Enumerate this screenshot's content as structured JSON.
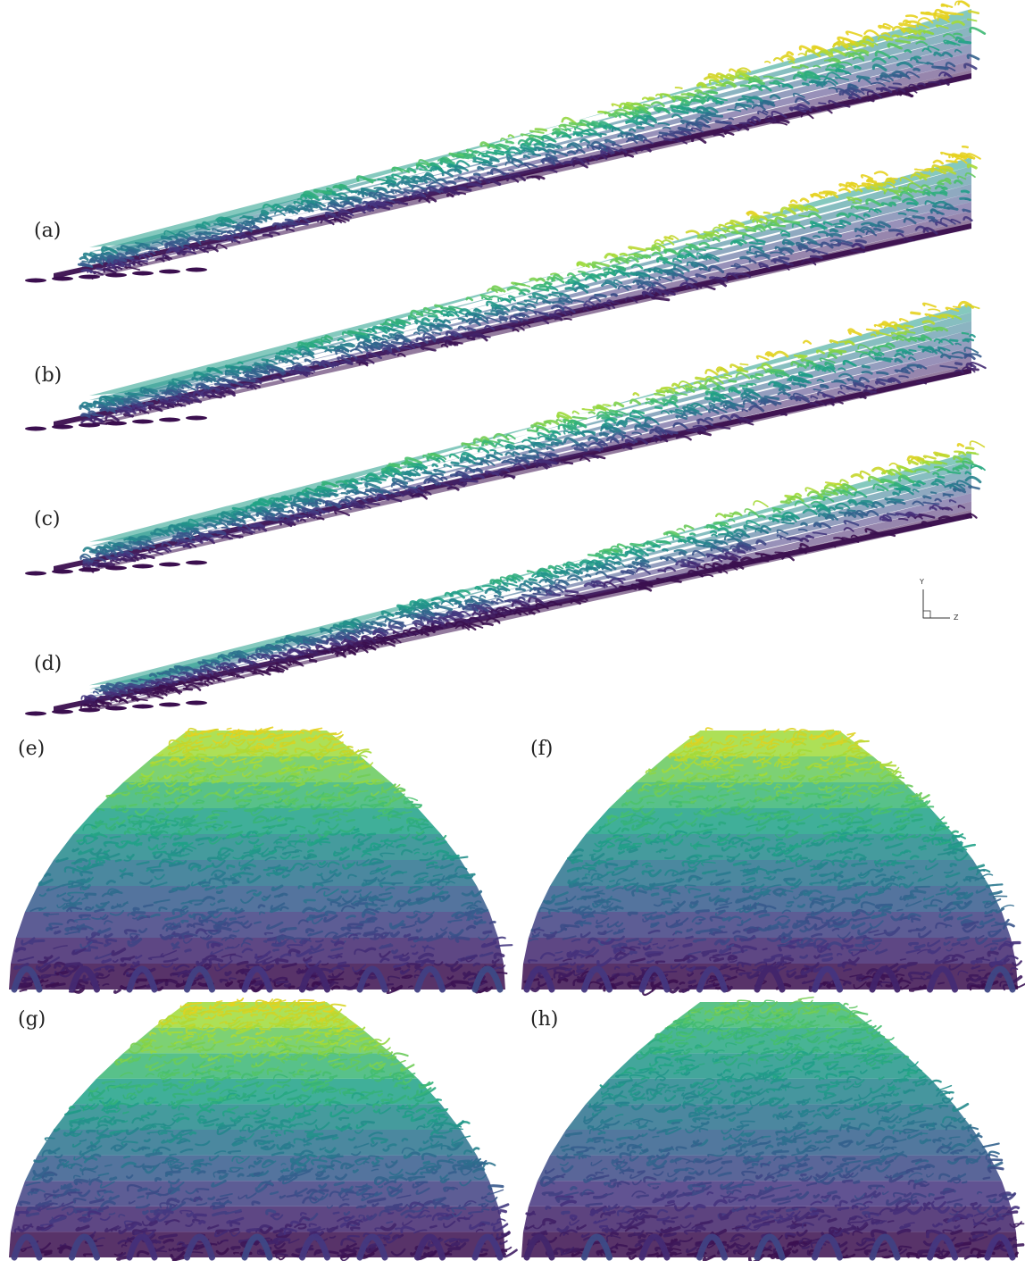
{
  "panels": [
    {
      "id": "a",
      "label": "(a)",
      "view": "side"
    },
    {
      "id": "b",
      "label": "(b)",
      "view": "side"
    },
    {
      "id": "c",
      "label": "(c)",
      "view": "side"
    },
    {
      "id": "d",
      "label": "(d)",
      "view": "side"
    },
    {
      "id": "e",
      "label": "(e)",
      "view": "front"
    },
    {
      "id": "f",
      "label": "(f)",
      "view": "front"
    },
    {
      "id": "g",
      "label": "(g)",
      "view": "front"
    },
    {
      "id": "h",
      "label": "(h)",
      "view": "front"
    }
  ],
  "axes_triad": {
    "y_label": "Y",
    "z_label": "Z"
  },
  "colormap": [
    "#3b0f4f",
    "#46337e",
    "#365c8d",
    "#277f8e",
    "#1fa187",
    "#4ac16d",
    "#a0da39",
    "#e6d21f"
  ]
}
